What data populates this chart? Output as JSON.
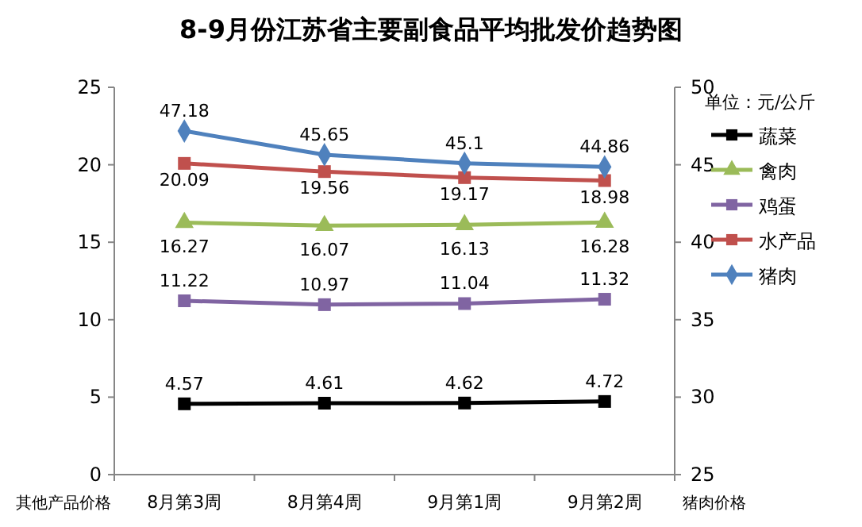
{
  "chart_data": {
    "type": "line",
    "title": "8-9月份江苏省主要副食品平均批发价趋势图",
    "categories": [
      "8月第3周",
      "8月第4周",
      "9月第1周",
      "9月第2周"
    ],
    "ylabel": "其他产品价格",
    "y2label": "猪肉价格",
    "legend_title": "单位：元/公斤",
    "ylim": [
      0,
      25
    ],
    "yticks": [
      0,
      5,
      10,
      15,
      20,
      25
    ],
    "y2lim": [
      25,
      50
    ],
    "y2ticks": [
      25,
      30,
      35,
      40,
      45,
      50
    ],
    "grid": false,
    "legend": "right",
    "data_labels": true,
    "series": [
      {
        "name": "蔬菜",
        "color": "#000000",
        "marker": "square",
        "values": [
          4.57,
          4.61,
          4.62,
          4.72
        ]
      },
      {
        "name": "禽肉",
        "color": "#9bbb59",
        "marker": "triangle",
        "values": [
          16.27,
          16.07,
          16.13,
          16.28
        ]
      },
      {
        "name": "鸡蛋",
        "color": "#8064a2",
        "marker": "square",
        "values": [
          11.22,
          10.97,
          11.04,
          11.32
        ]
      },
      {
        "name": "水产品",
        "color": "#c0504d",
        "marker": "square",
        "values": [
          20.09,
          19.56,
          19.17,
          18.98
        ]
      },
      {
        "name": "猪肉",
        "color": "#4f81bd",
        "marker": "diamond",
        "axis": "y2",
        "values": [
          47.18,
          45.65,
          45.1,
          44.86
        ]
      }
    ]
  }
}
